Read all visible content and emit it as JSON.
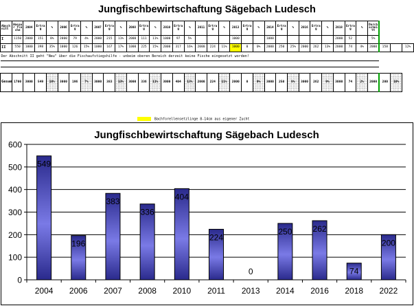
{
  "sheet": {
    "title": "Jungfischbewirtschaftung Sägebach Ludesch",
    "header": [
      "Abschnitt",
      "Wasser fläche",
      "2004",
      "Ertrag",
      "%",
      "2006",
      "Ertrag",
      "%",
      "2007",
      "Ertrag",
      "%",
      "2008",
      "Ertrag",
      "%",
      "2010",
      "Ertrag",
      "%",
      "2011",
      "Ertrag",
      "%",
      "2013",
      "Ertrag",
      "%",
      "2014",
      "Ertrag",
      "%",
      "2016",
      "Ertrag",
      "%",
      "2018",
      "Ertrag",
      "%",
      "Durchschnitt"
    ],
    "rows": [
      [
        "I",
        "1150",
        "2000",
        "151",
        "8%",
        "2000",
        "79",
        "4%",
        "2000",
        "215",
        "11%",
        "2000",
        "111",
        "11%",
        "1000",
        "97",
        "5%",
        "",
        "",
        "",
        "1000",
        "",
        "",
        "1000",
        "",
        "",
        "",
        "",
        "",
        "2000",
        "52",
        "",
        "5%"
      ],
      [
        "II",
        "550",
        "1000",
        "398",
        "35%",
        "1000",
        "126",
        "15%",
        "1000",
        "167",
        "17%",
        "1000",
        "225",
        "15%",
        "2000",
        "317",
        "16%",
        "2000",
        "224",
        "11%",
        "1000",
        "0",
        "0%",
        "2000",
        "250",
        "25%",
        "2000",
        "262",
        "13%",
        "2000",
        "74",
        "4%",
        "2000",
        "158",
        "",
        "12%"
      ]
    ],
    "note": "Der Abschnitt II geht \"Neu\" über die Fischaufstiegshilfe - unbeim oberen Bereich derzeit keine Fische eingesetzt worden!",
    "total": [
      "Gesamt",
      "1700",
      "3000",
      "549",
      "18%",
      "3000",
      "196",
      "7%",
      "3000",
      "383",
      "13%",
      "3000",
      "336",
      "11%",
      "3000",
      "404",
      "13%",
      "2000",
      "224",
      "11%",
      "2000",
      "0",
      "0%",
      "3000",
      "250",
      "8%",
      "3000",
      "262",
      "9%",
      "3000",
      "74",
      "2%",
      "2000",
      "200",
      "10%"
    ],
    "legend": "Bachforellensetzlinge 8-14cm aus eigener Zucht"
  },
  "chart_data": {
    "type": "bar",
    "title": "Jungfischbewirtschaftung Sägebach Ludesch",
    "categories": [
      "2004",
      "2006",
      "2007",
      "2008",
      "2010",
      "2011",
      "2013",
      "2014",
      "2016",
      "2018",
      "2022"
    ],
    "values": [
      549,
      196,
      383,
      336,
      404,
      224,
      0,
      250,
      262,
      74,
      200
    ],
    "ylim": [
      0,
      600
    ],
    "yticks": [
      0,
      100,
      200,
      300,
      400,
      500,
      600
    ],
    "ytick_labels": [
      "0",
      "100",
      "200",
      "300",
      "400",
      "500",
      "600"
    ],
    "grid": true,
    "legend": "none",
    "data_labels": true,
    "bar_color_top": "#2a2a8c",
    "bar_color_mid": "#7a7ae6"
  }
}
